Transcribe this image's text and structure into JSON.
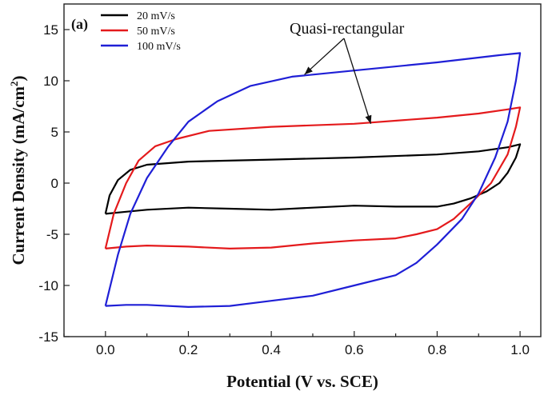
{
  "chart_data": {
    "type": "line",
    "panel_label": "(a)",
    "title": "",
    "xlabel": "Potential (V vs. SCE)",
    "ylabel_main": "Current Density (mA/cm",
    "ylabel_sup": "2",
    "ylabel_end": ")",
    "xlim": [
      -0.1,
      1.05
    ],
    "ylim": [
      -15,
      17.5
    ],
    "xticks": [
      0.0,
      0.2,
      0.4,
      0.6,
      0.8,
      1.0
    ],
    "xtick_labels": [
      "0.0",
      "0.2",
      "0.4",
      "0.6",
      "0.8",
      "1.0"
    ],
    "yticks": [
      -15,
      -10,
      -5,
      0,
      5,
      10,
      15
    ],
    "ytick_labels": [
      "-15",
      "-10",
      "-5",
      "0",
      "5",
      "10",
      "15"
    ],
    "grid": false,
    "legend_position": "top-left",
    "annotation": "Quasi-rectangular",
    "series": [
      {
        "name": "20 mV/s",
        "color": "#000000",
        "points": [
          [
            0.0,
            -3.0
          ],
          [
            0.01,
            -1.2
          ],
          [
            0.03,
            0.3
          ],
          [
            0.06,
            1.3
          ],
          [
            0.1,
            1.8
          ],
          [
            0.2,
            2.1
          ],
          [
            0.4,
            2.3
          ],
          [
            0.6,
            2.5
          ],
          [
            0.8,
            2.8
          ],
          [
            0.9,
            3.1
          ],
          [
            0.97,
            3.5
          ],
          [
            1.0,
            3.8
          ],
          [
            0.99,
            2.5
          ],
          [
            0.97,
            1.0
          ],
          [
            0.95,
            0.0
          ],
          [
            0.92,
            -0.8
          ],
          [
            0.88,
            -1.5
          ],
          [
            0.84,
            -2.0
          ],
          [
            0.8,
            -2.3
          ],
          [
            0.7,
            -2.3
          ],
          [
            0.6,
            -2.2
          ],
          [
            0.5,
            -2.4
          ],
          [
            0.4,
            -2.6
          ],
          [
            0.3,
            -2.5
          ],
          [
            0.2,
            -2.4
          ],
          [
            0.1,
            -2.6
          ],
          [
            0.05,
            -2.8
          ],
          [
            0.0,
            -3.0
          ]
        ]
      },
      {
        "name": "50 mV/s",
        "color": "#e41a1c",
        "points": [
          [
            0.0,
            -6.4
          ],
          [
            0.02,
            -3.0
          ],
          [
            0.05,
            0.0
          ],
          [
            0.08,
            2.2
          ],
          [
            0.12,
            3.6
          ],
          [
            0.17,
            4.3
          ],
          [
            0.25,
            5.1
          ],
          [
            0.4,
            5.5
          ],
          [
            0.6,
            5.8
          ],
          [
            0.8,
            6.4
          ],
          [
            0.9,
            6.8
          ],
          [
            0.97,
            7.2
          ],
          [
            1.0,
            7.4
          ],
          [
            0.99,
            5.5
          ],
          [
            0.97,
            2.8
          ],
          [
            0.93,
            0.0
          ],
          [
            0.88,
            -2.0
          ],
          [
            0.84,
            -3.5
          ],
          [
            0.8,
            -4.5
          ],
          [
            0.75,
            -5.0
          ],
          [
            0.7,
            -5.4
          ],
          [
            0.6,
            -5.6
          ],
          [
            0.5,
            -5.9
          ],
          [
            0.4,
            -6.3
          ],
          [
            0.3,
            -6.4
          ],
          [
            0.2,
            -6.2
          ],
          [
            0.1,
            -6.1
          ],
          [
            0.05,
            -6.2
          ],
          [
            0.0,
            -6.4
          ]
        ]
      },
      {
        "name": "100 mV/s",
        "color": "#1f1fd6",
        "points": [
          [
            0.0,
            -12.0
          ],
          [
            0.03,
            -7.0
          ],
          [
            0.06,
            -3.0
          ],
          [
            0.1,
            0.5
          ],
          [
            0.15,
            3.5
          ],
          [
            0.2,
            6.0
          ],
          [
            0.27,
            8.0
          ],
          [
            0.35,
            9.5
          ],
          [
            0.45,
            10.4
          ],
          [
            0.6,
            11.0
          ],
          [
            0.8,
            11.8
          ],
          [
            0.95,
            12.5
          ],
          [
            1.0,
            12.7
          ],
          [
            0.99,
            10.0
          ],
          [
            0.97,
            6.0
          ],
          [
            0.94,
            2.5
          ],
          [
            0.9,
            -1.0
          ],
          [
            0.86,
            -3.5
          ],
          [
            0.8,
            -6.0
          ],
          [
            0.75,
            -7.8
          ],
          [
            0.7,
            -9.0
          ],
          [
            0.6,
            -10.0
          ],
          [
            0.5,
            -11.0
          ],
          [
            0.4,
            -11.5
          ],
          [
            0.3,
            -12.0
          ],
          [
            0.2,
            -12.1
          ],
          [
            0.1,
            -11.9
          ],
          [
            0.05,
            -11.9
          ],
          [
            0.0,
            -12.0
          ]
        ]
      }
    ],
    "arrow_targets": [
      [
        0.48,
        10.6
      ],
      [
        0.64,
        5.8
      ]
    ]
  }
}
